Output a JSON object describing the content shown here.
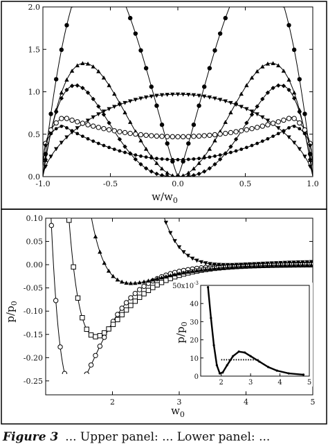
{
  "caption": {
    "label": "Figure 3",
    "text": "... Upper panel: ... Lower panel: ..."
  },
  "chart_data": [
    {
      "id": "upper",
      "type": "line",
      "title": "",
      "xlabel_main": "w/w",
      "xlabel_sub": "0",
      "ylabel": "",
      "xlim": [
        -1.0,
        1.0
      ],
      "ylim": [
        0.0,
        2.0
      ],
      "xticks": [
        "-1.0",
        "-0.5",
        "0.0",
        "0.5",
        "1.0"
      ],
      "yticks": [
        "0.0",
        "0.5",
        "1.0",
        "1.5",
        "2.0"
      ],
      "series": [
        {
          "marker": "circle-filled",
          "shape": "peaked",
          "peak_x": 0.8,
          "peak_y": 1.93
        },
        {
          "marker": "triangle-up",
          "shape": "peaked",
          "peak_x": 0.72,
          "peak_y": 1.33
        },
        {
          "marker": "diamond-filled",
          "shape": "peaked",
          "peak_x": 0.65,
          "peak_y": 0.96
        },
        {
          "marker": "triangle-down",
          "shape": "dome",
          "center_y": 0.97
        },
        {
          "marker": "circle-open",
          "shape": "bowl",
          "center_y": 0.47,
          "edge_y": 0.7
        },
        {
          "marker": "dot",
          "shape": "bowl",
          "center_y": 0.2,
          "edge_y": 0.6
        }
      ]
    },
    {
      "id": "lower",
      "type": "line",
      "title": "",
      "xlabel_main": "w",
      "xlabel_sub": "0",
      "ylabel_main": "p/p",
      "ylabel_sub": "0",
      "xlim": [
        1.0,
        5.0
      ],
      "ylim": [
        -0.28,
        0.1
      ],
      "xticks": [
        "2",
        "3",
        "4",
        "5"
      ],
      "yticks": [
        "0.10",
        "0.05",
        "0.00",
        "-0.05",
        "-0.10",
        "-0.15",
        "-0.20",
        "-0.25"
      ],
      "series": [
        {
          "marker": "circle-open",
          "min_x": 1.42,
          "min_y": -0.27,
          "decay": 0.7
        },
        {
          "marker": "square-open",
          "min_x": 1.75,
          "min_y": -0.155,
          "decay": 0.78
        },
        {
          "marker": "triangle-up",
          "min_x": 2.28,
          "min_y": -0.04,
          "decay": 0.9
        },
        {
          "marker": "triangle-down",
          "min_x": 3.6,
          "min_y": -0.002,
          "decay": 1.0
        }
      ],
      "inset": {
        "type": "line",
        "xlim": [
          1.3,
          5.0
        ],
        "ylim": [
          0,
          50
        ],
        "xticks": [
          "2",
          "3",
          "4",
          "5"
        ],
        "yticks": [
          "0",
          "10",
          "20",
          "30",
          "40",
          "50x10"
        ],
        "ytick_exponent": "-3",
        "ylabel_main": "p/p",
        "ylabel_sub": "0",
        "points": [
          {
            "x": 1.55,
            "y": 49
          },
          {
            "x": 1.65,
            "y": 32
          },
          {
            "x": 1.75,
            "y": 17
          },
          {
            "x": 1.85,
            "y": 6
          },
          {
            "x": 1.95,
            "y": 1.5
          },
          {
            "x": 2.05,
            "y": 2
          },
          {
            "x": 2.2,
            "y": 6
          },
          {
            "x": 2.4,
            "y": 11
          },
          {
            "x": 2.6,
            "y": 13.5
          },
          {
            "x": 2.8,
            "y": 13
          },
          {
            "x": 3.0,
            "y": 11
          },
          {
            "x": 3.3,
            "y": 8
          },
          {
            "x": 3.6,
            "y": 5
          },
          {
            "x": 3.9,
            "y": 3
          },
          {
            "x": 4.3,
            "y": 1.5
          },
          {
            "x": 4.8,
            "y": 0.8
          }
        ],
        "maxwell_line": {
          "x_start": 2.0,
          "x_end": 3.3,
          "y": 9
        }
      }
    }
  ]
}
